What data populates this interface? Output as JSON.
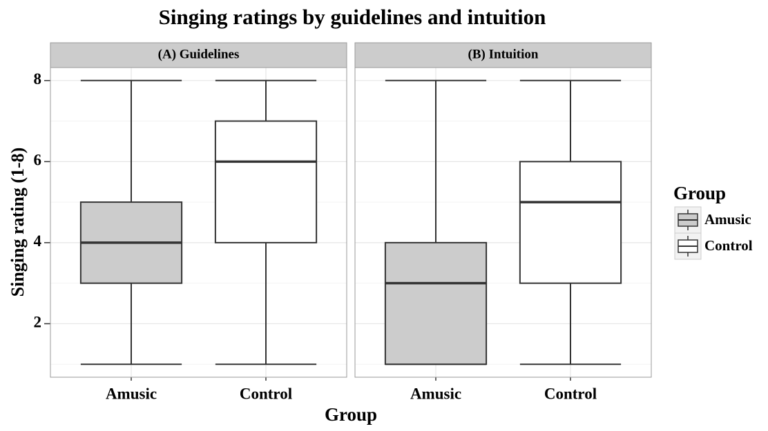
{
  "title": "Singing ratings by guidelines and intuition",
  "x_label": "Group",
  "y_label": "Singing rating (1-8)",
  "legend_title": "Group",
  "legend": [
    {
      "name": "Amusic",
      "color": "#cccccc"
    },
    {
      "name": "Control",
      "color": "#ffffff"
    }
  ],
  "chart_data": [
    {
      "type": "box",
      "title": "(A) Guidelines",
      "categories": [
        "Amusic",
        "Control"
      ],
      "boxes": [
        {
          "min": 1,
          "q1": 3,
          "median": 4,
          "q3": 5,
          "max": 8
        },
        {
          "min": 1,
          "q1": 4,
          "median": 6,
          "q3": 7,
          "max": 8
        }
      ],
      "ylim": [
        0.68,
        8.32
      ],
      "yticks": [
        2,
        4,
        6,
        8
      ],
      "minor_yticks": [
        1,
        3,
        5,
        7
      ],
      "grid": true
    },
    {
      "type": "box",
      "title": "(B) Intuition",
      "categories": [
        "Amusic",
        "Control"
      ],
      "boxes": [
        {
          "min": 1,
          "q1": 1,
          "median": 3,
          "q3": 4,
          "max": 8
        },
        {
          "min": 1,
          "q1": 3,
          "median": 5,
          "q3": 6,
          "max": 8
        }
      ],
      "ylim": [
        0.68,
        8.32
      ],
      "yticks": [
        2,
        4,
        6,
        8
      ],
      "minor_yticks": [
        1,
        3,
        5,
        7
      ],
      "grid": true
    }
  ]
}
